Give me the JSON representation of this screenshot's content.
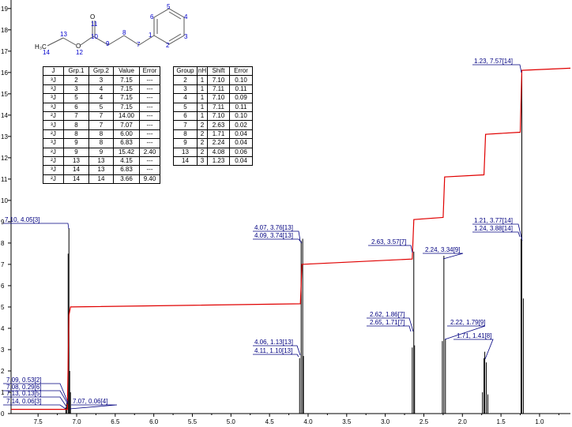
{
  "chart_data": {
    "type": "nmr",
    "xlim": [
      7.85,
      0.6
    ],
    "ylim": [
      0,
      19.4
    ],
    "xticks": [
      7.5,
      {
        "value": 7,
        "label": "7.0"
      },
      6.5,
      {
        "value": 6,
        "label": "6.0"
      },
      5.5,
      {
        "value": 5,
        "label": "5.0"
      },
      4.5,
      {
        "value": 4,
        "label": "4.0"
      },
      3.5,
      {
        "value": 3,
        "label": "3.0"
      },
      2.5,
      {
        "value": 2,
        "label": "2.0"
      },
      1.5,
      {
        "value": 1,
        "label": "1.0"
      }
    ],
    "yticks": [
      0,
      1,
      2,
      3,
      4,
      5,
      6,
      7,
      8,
      9,
      10,
      11,
      12,
      13,
      14,
      15,
      16,
      17,
      18,
      19
    ],
    "peaks": {
      "color": "#000000",
      "x": [
        7.14,
        7.13,
        7.11,
        7.1,
        7.09,
        7.08,
        4.11,
        4.09,
        4.07,
        4.06,
        2.65,
        2.63,
        2.62,
        2.26,
        2.24,
        2.22,
        1.74,
        1.72,
        1.71,
        1.69,
        1.67,
        1.24,
        1.23,
        1.21
      ],
      "values": [
        0.3,
        0.5,
        7.5,
        8.7,
        2.0,
        1.0,
        2.6,
        8.1,
        8.2,
        2.7,
        3.1,
        7.6,
        3.2,
        3.4,
        7.4,
        3.5,
        1.0,
        2.6,
        2.9,
        2.4,
        0.9,
        8.2,
        16.0,
        5.4
      ]
    },
    "integral": {
      "color": "#e00000",
      "x": [
        7.85,
        7.12,
        7.1,
        7.08,
        4.1,
        4.08,
        2.65,
        2.63,
        2.25,
        2.23,
        1.72,
        1.7,
        1.25,
        1.23,
        0.6
      ],
      "values": [
        0.2,
        0.2,
        4.6,
        5.0,
        5.15,
        7.0,
        7.25,
        9.1,
        9.2,
        11.1,
        11.2,
        13.1,
        13.2,
        16.1,
        16.2
      ]
    },
    "annotations": [
      "1.23, 7.57[14]",
      "7.10, 4.05[3]",
      "4.07, 3.76[13]",
      "4.09, 3.74[13]",
      "2.63, 3.57[7]",
      "2.24, 3.34[9]",
      "1.21, 3.77[14]",
      "1.24, 3.88[14]",
      "2.62, 1.86[7]",
      "2.65, 1.71[7]",
      "2.22, 1.79[9]",
      "1.71, 1.41[8]",
      "4.06, 1.13[13]",
      "4.11, 1.10[13]",
      "7.09, 0.53[2]",
      "7.08, 0.29[6]",
      "7.13, 0.13[5]",
      "7.14, 0.06[3]",
      "7.07, 0.06[4]"
    ]
  },
  "structure": {
    "labels": [
      "H₃C",
      "14",
      "13",
      "O",
      "12",
      "10",
      "O",
      "11",
      "9",
      "8",
      "7",
      "1",
      "2",
      "3",
      "4",
      "5",
      "6"
    ]
  },
  "tables": {
    "coupling": {
      "header": [
        "J",
        "Grp.1",
        "Grp.2",
        "Value",
        "Error"
      ],
      "rows": [
        [
          "³J",
          "2",
          "3",
          "7.15",
          "---"
        ],
        [
          "³J",
          "3",
          "4",
          "7.15",
          "---"
        ],
        [
          "³J",
          "5",
          "4",
          "7.15",
          "---"
        ],
        [
          "³J",
          "6",
          "5",
          "7.15",
          "---"
        ],
        [
          "²J",
          "7",
          "7",
          "14.00",
          "---"
        ],
        [
          "³J",
          "8",
          "7",
          "7.07",
          "---"
        ],
        [
          "²J",
          "8",
          "8",
          "6.00",
          "---"
        ],
        [
          "³J",
          "9",
          "8",
          "6.83",
          "---"
        ],
        [
          "²J",
          "9",
          "9",
          "15.42",
          "2.40"
        ],
        [
          "²J",
          "13",
          "13",
          "4.15",
          "---"
        ],
        [
          "³J",
          "14",
          "13",
          "6.83",
          "---"
        ],
        [
          "²J",
          "14",
          "14",
          "3.66",
          "9.40"
        ]
      ]
    },
    "shifts": {
      "header": [
        "Group",
        "nH",
        "Shift",
        "Error"
      ],
      "rows": [
        [
          "2",
          "1",
          "7.10",
          "0.10"
        ],
        [
          "3",
          "1",
          "7.11",
          "0.11"
        ],
        [
          "4",
          "1",
          "7.10",
          "0.09"
        ],
        [
          "5",
          "1",
          "7.11",
          "0.11"
        ],
        [
          "6",
          "1",
          "7.10",
          "0.10"
        ],
        [
          "7",
          "2",
          "2.63",
          "0.02"
        ],
        [
          "8",
          "2",
          "1.71",
          "0.04"
        ],
        [
          "9",
          "2",
          "2.24",
          "0.04"
        ],
        [
          "13",
          "2",
          "4.08",
          "0.06"
        ],
        [
          "14",
          "3",
          "1.23",
          "0.04"
        ]
      ]
    }
  }
}
